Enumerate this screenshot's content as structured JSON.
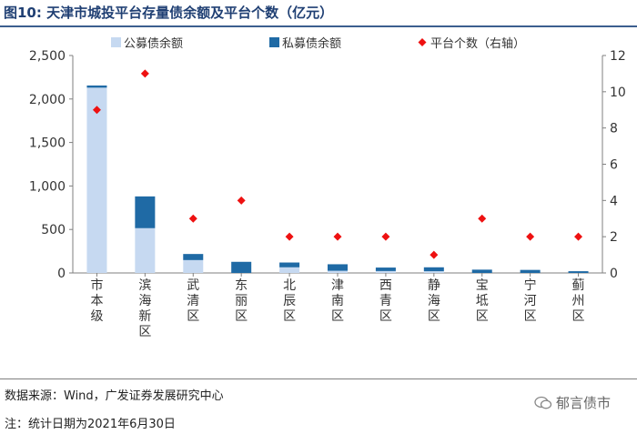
{
  "figure": {
    "label": "图10:",
    "title": "天津市城投平台存量债余额及平台个数（亿元）"
  },
  "chart_data": {
    "type": "bar",
    "stacked": true,
    "categories": [
      "市本级",
      "滨海新区",
      "武清区",
      "东丽区",
      "北辰区",
      "津南区",
      "西青区",
      "静海区",
      "宝坻区",
      "宁河区",
      "蓟州区"
    ],
    "series": [
      {
        "name": "公募债余额",
        "type": "bar",
        "axis": "left",
        "color": "#c6d9f1",
        "values": [
          2130,
          515,
          148,
          0,
          65,
          25,
          22,
          20,
          0,
          0,
          0
        ]
      },
      {
        "name": "私募债余额",
        "type": "bar",
        "axis": "left",
        "color": "#1f6aa5",
        "values": [
          25,
          365,
          70,
          128,
          55,
          75,
          40,
          45,
          38,
          35,
          20
        ]
      },
      {
        "name": "平台个数（右轴）",
        "type": "scatter",
        "axis": "right",
        "color": "#ee1111",
        "values": [
          9,
          11,
          3,
          4,
          2,
          2,
          2,
          1,
          3,
          2,
          2
        ]
      }
    ],
    "left_axis": {
      "min": 0,
      "max": 2500,
      "ticks": [
        0,
        500,
        1000,
        1500,
        2000,
        2500
      ],
      "tick_labels": [
        "0",
        "500",
        "1,000",
        "1,500",
        "2,000",
        "2,500"
      ]
    },
    "right_axis": {
      "min": 0,
      "max": 12,
      "ticks": [
        0,
        2,
        4,
        6,
        8,
        10,
        12
      ],
      "tick_labels": [
        "0",
        "2",
        "4",
        "6",
        "8",
        "10",
        "12"
      ]
    },
    "legend_position": "top",
    "grid": false
  },
  "footer": {
    "source": "数据来源：Wind，广发证券发展研究中心",
    "note": "注：统计日期为2021年6月30日",
    "watermark": "郁言债市",
    "watermark_icon": "chat-bubble-icon"
  }
}
